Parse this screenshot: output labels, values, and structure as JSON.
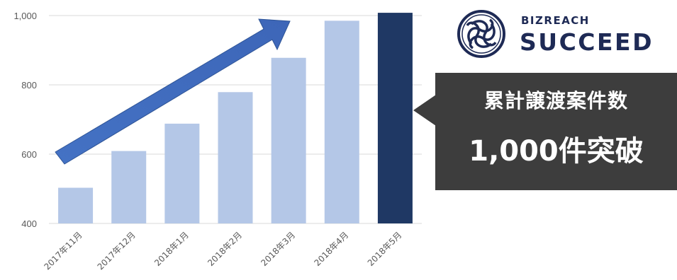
{
  "chart_data": {
    "type": "bar",
    "categories": [
      "2017年11月",
      "2017年12月",
      "2018年1月",
      "2018年2月",
      "2018年3月",
      "2018年4月",
      "2018年5月"
    ],
    "values": [
      503,
      609,
      688,
      779,
      878,
      985,
      1008
    ],
    "ylim": [
      400,
      1000
    ],
    "yticks": [
      400,
      600,
      800,
      1000
    ],
    "ytick_labels": [
      "400",
      "600",
      "800",
      "1,000"
    ],
    "grid": true,
    "colors": {
      "bar": "#b4c7e7",
      "highlight": "#1f3864",
      "arrow": "#4472c4",
      "grid": "#d9d9d9"
    },
    "highlight_index": 6,
    "annotation": "upward-trend-arrow"
  },
  "brand": {
    "small": "BIZREACH",
    "large": "SUCCEED",
    "color": "#1e2a55",
    "icon": "knot-logo-icon"
  },
  "callout": {
    "line1": "累計譲渡案件数",
    "line2": "1,000件突破",
    "background": "#3d3d3d"
  }
}
